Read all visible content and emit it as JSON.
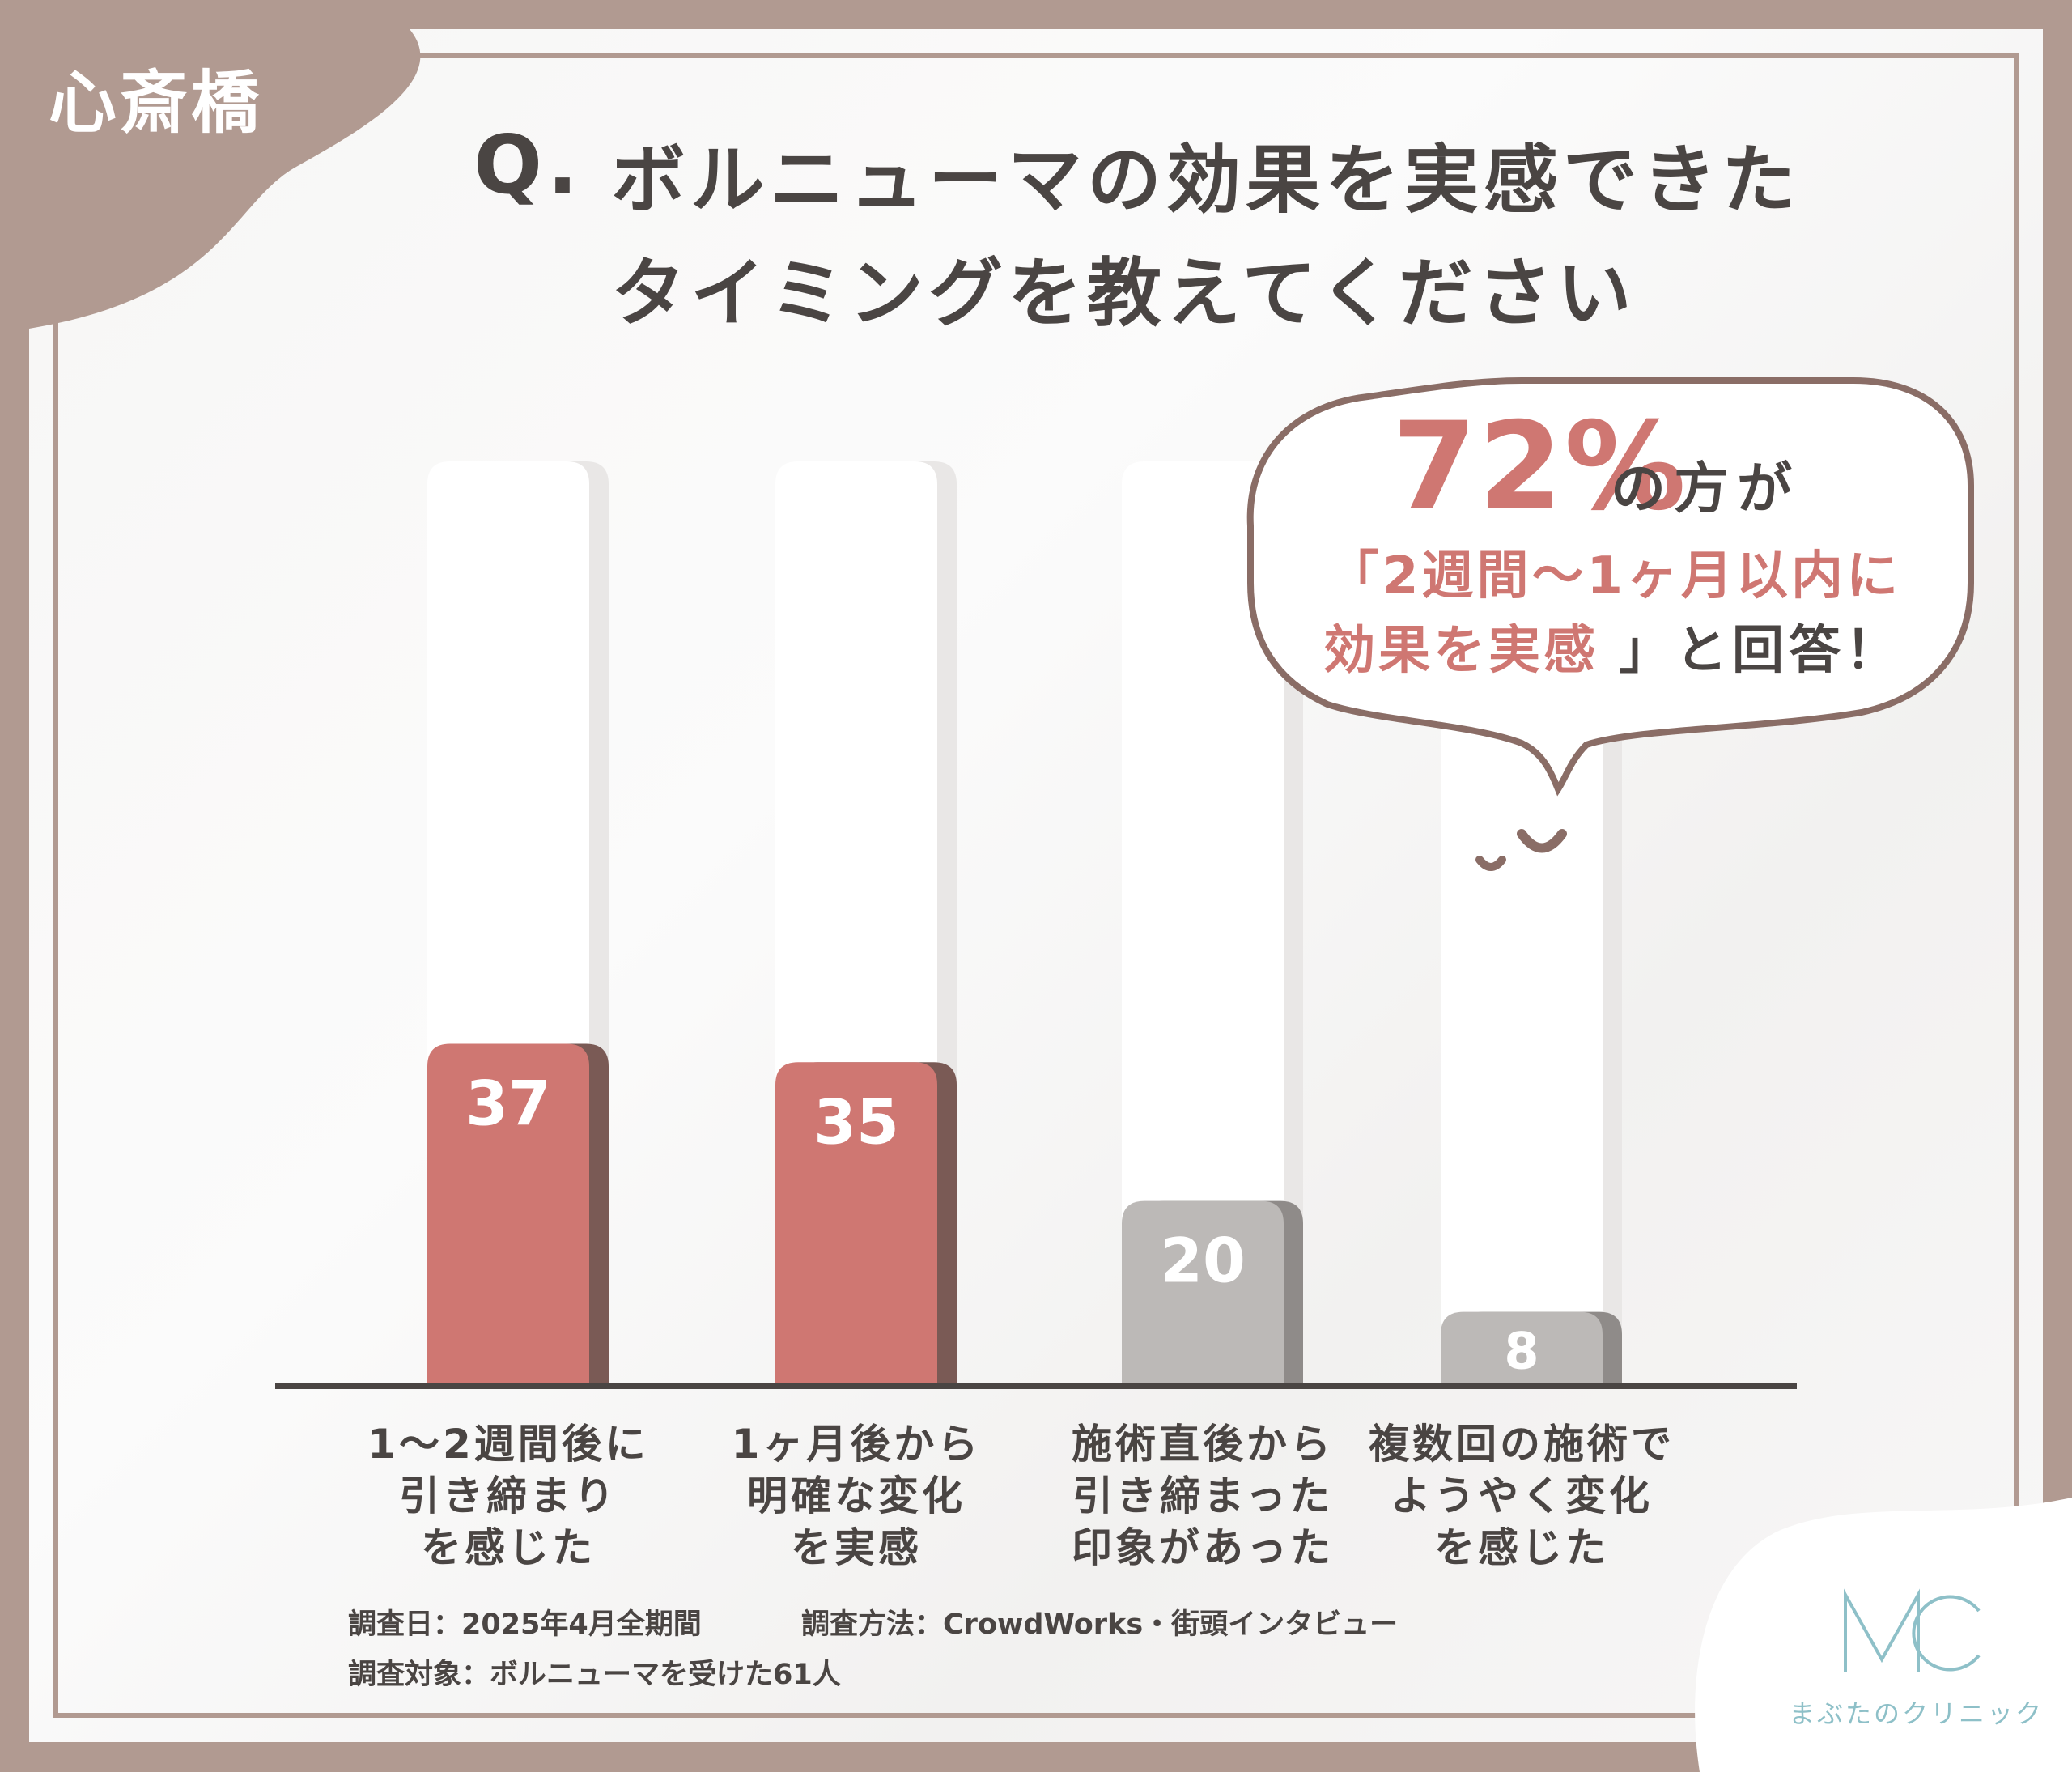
{
  "location_tag": "心斎橋",
  "title": {
    "q": "Q.",
    "line1": "ボルニューマの効果を実感できた",
    "line2": "タイミングを教えてください"
  },
  "callout": {
    "percent": "72%",
    "tail": "の方が",
    "line2": "「2週間〜1ヶ月以内に",
    "line3_highlight": "効果を実感",
    "line3_rest": "」と回答！"
  },
  "chart_data": {
    "type": "bar",
    "categories": [
      [
        "1〜2週間後に",
        "引き締まり",
        "を感じた"
      ],
      [
        "1ヶ月後から",
        "明確な変化",
        "を実感"
      ],
      [
        "施術直後から",
        "引き締まった",
        "印象があった"
      ],
      [
        "複数回の施術で",
        "ようやく変化",
        "を感じた"
      ]
    ],
    "values": [
      37,
      35,
      20,
      8
    ],
    "highlight": [
      true,
      true,
      false,
      false
    ],
    "ylim": [
      0,
      100
    ],
    "xlabel": "",
    "ylabel": "",
    "grid": false,
    "colors": {
      "highlight": "#cf7772",
      "highlight_shadow": "#7a5a55",
      "normal": "#bcb9b7",
      "normal_shadow": "#8f8b89",
      "track": "#ffffff",
      "baseline": "#4a4543"
    }
  },
  "footnotes": {
    "date": "調査日：2025年4月全期間",
    "method": "調査方法：CrowdWorks・街頭インタビュー",
    "target": "調査対象：ボルニューマを受けた61人"
  },
  "logo": {
    "mark": "MC",
    "name": "まぶたのクリニック"
  },
  "colors": {
    "frame": "#b19a91",
    "text": "#4a4543",
    "accent": "#cf7772",
    "logo": "#8ec0c8"
  }
}
